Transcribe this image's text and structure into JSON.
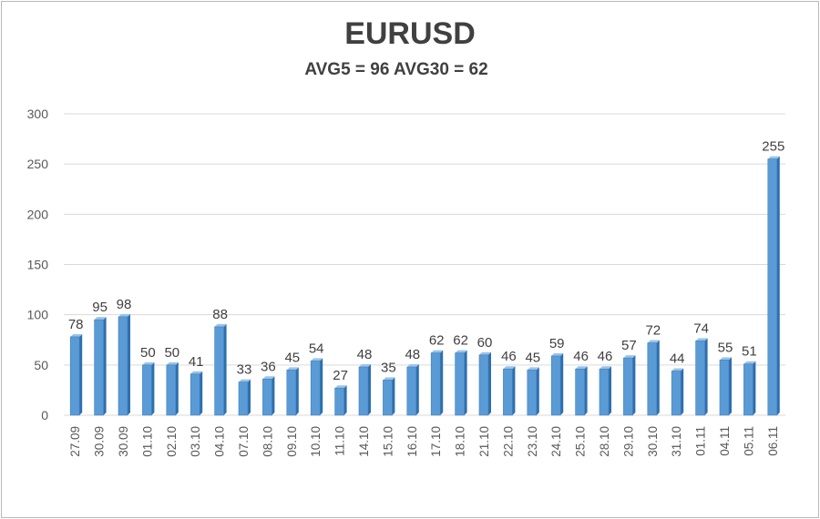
{
  "chart_data": {
    "type": "bar",
    "title": "EURUSD",
    "subtitle": "AVG5 = 96 AVG30 = 62",
    "xlabel": "",
    "ylabel": "",
    "ylim": [
      0,
      300
    ],
    "yticks": [
      0,
      50,
      100,
      150,
      200,
      250,
      300
    ],
    "grid": true,
    "categories": [
      "27.09",
      "30.09",
      "30.09",
      "01.10",
      "02.10",
      "03.10",
      "04.10",
      "07.10",
      "08.10",
      "09.10",
      "10.10",
      "11.10",
      "14.10",
      "15.10",
      "16.10",
      "17.10",
      "18.10",
      "21.10",
      "22.10",
      "23.10",
      "24.10",
      "25.10",
      "28.10",
      "29.10",
      "30.10",
      "31.10",
      "01.11",
      "04.11",
      "05.11",
      "06.11"
    ],
    "values": [
      78,
      95,
      98,
      50,
      50,
      41,
      88,
      33,
      36,
      45,
      54,
      27,
      48,
      35,
      48,
      62,
      62,
      60,
      46,
      45,
      59,
      46,
      46,
      57,
      72,
      44,
      74,
      55,
      51,
      255
    ],
    "colors": {
      "bar_front": "#5b9bd5",
      "bar_side": "#2e6fae",
      "bar_top": "#9cc3e8"
    }
  }
}
